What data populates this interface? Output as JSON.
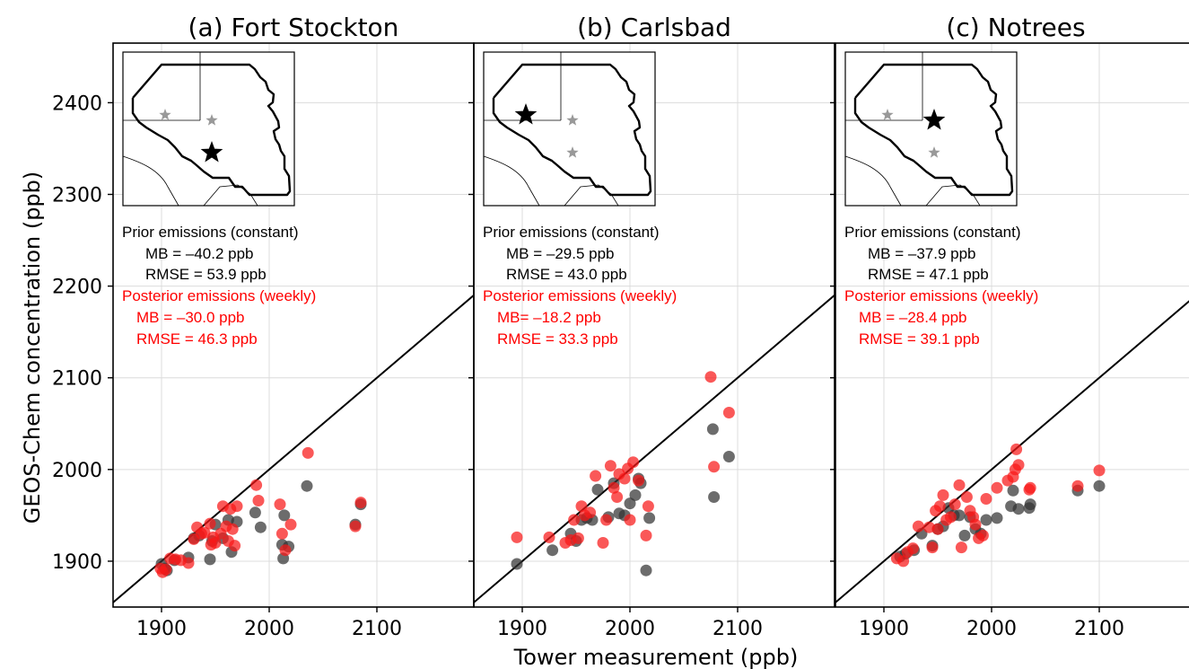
{
  "figure": {
    "xlabel": "Tower measurement (ppb)",
    "ylabel": "GEOS-Chem concentration (ppb)"
  },
  "colors": {
    "prior": "#333333",
    "posterior": "#f81818",
    "prior_text": "#000000",
    "posterior_text": "#ff0000",
    "grid": "#dcdcdc",
    "inset_star_active": "#000000",
    "inset_star_inactive": "#999999"
  },
  "chart_data": [
    {
      "type": "scatter",
      "title": "(a) Fort Stockton",
      "xlabel": "Tower measurement (ppb)",
      "ylabel": "GEOS-Chem concentration (ppb)",
      "xlim": [
        1855,
        2190
      ],
      "ylim": [
        1850,
        2465
      ],
      "xticks": [
        1900,
        2000,
        2100
      ],
      "yticks": [
        1900,
        2000,
        2100,
        2200,
        2300,
        2400
      ],
      "xtick_labels": [
        "1900",
        "2000",
        "2100"
      ],
      "ytick_labels": [
        "1900",
        "2000",
        "2100",
        "2200",
        "2300",
        "2400"
      ],
      "grid": true,
      "reference_line": "1:1",
      "inset": {
        "active_site": "Fort Stockton",
        "sites": [
          "Carlsbad",
          "Notrees",
          "Fort Stockton"
        ]
      },
      "stats": {
        "prior_heading": "Prior emissions (constant)",
        "prior_mb": "MB = –40.2 ppb",
        "prior_rmse": "RMSE = 53.9 ppb",
        "posterior_heading": "Posterior emissions (weekly)",
        "posterior_mb": "MB = –30.0 ppb",
        "posterior_rmse": "RMSE = 46.3 ppb"
      },
      "series": [
        {
          "name": "Prior emissions (constant)",
          "points": [
            [
              1900,
              1897
            ],
            [
              1903,
              1892
            ],
            [
              1905,
              1890
            ],
            [
              1912,
              1901
            ],
            [
              1925,
              1904
            ],
            [
              1930,
              1925
            ],
            [
              1935,
              1928
            ],
            [
              1945,
              1902
            ],
            [
              1947,
              1922
            ],
            [
              1950,
              1940
            ],
            [
              1957,
              1925
            ],
            [
              1962,
              1945
            ],
            [
              1965,
              1910
            ],
            [
              1970,
              1943
            ],
            [
              1987,
              1953
            ],
            [
              1992,
              1937
            ],
            [
              2012,
              1918
            ],
            [
              2013,
              1903
            ],
            [
              2014,
              1950
            ],
            [
              2018,
              1916
            ],
            [
              2035,
              1982
            ],
            [
              2080,
              1940
            ],
            [
              2085,
              1962
            ]
          ]
        },
        {
          "name": "Posterior emissions (weekly)",
          "points": [
            [
              1899,
              1892
            ],
            [
              1901,
              1888
            ],
            [
              1904,
              1891
            ],
            [
              1908,
              1903
            ],
            [
              1913,
              1902
            ],
            [
              1918,
              1901
            ],
            [
              1925,
              1898
            ],
            [
              1930,
              1924
            ],
            [
              1933,
              1937
            ],
            [
              1937,
              1930
            ],
            [
              1940,
              1931
            ],
            [
              1945,
              1941
            ],
            [
              1946,
              1918
            ],
            [
              1948,
              1926
            ],
            [
              1950,
              1920
            ],
            [
              1955,
              1930
            ],
            [
              1957,
              1960
            ],
            [
              1960,
              1938
            ],
            [
              1962,
              1922
            ],
            [
              1964,
              1957
            ],
            [
              1966,
              1935
            ],
            [
              1968,
              1917
            ],
            [
              1970,
              1960
            ],
            [
              1988,
              1983
            ],
            [
              1990,
              1966
            ],
            [
              2010,
              1962
            ],
            [
              2012,
              1930
            ],
            [
              2015,
              1912
            ],
            [
              2020,
              1940
            ],
            [
              2036,
              2018
            ],
            [
              2080,
              1938
            ],
            [
              2085,
              1964
            ]
          ]
        }
      ]
    },
    {
      "type": "scatter",
      "title": "(b) Carlsbad",
      "xlabel": "Tower measurement (ppb)",
      "ylabel": "GEOS-Chem concentration (ppb)",
      "xlim": [
        1855,
        2190
      ],
      "ylim": [
        1850,
        2465
      ],
      "xticks": [
        1900,
        2000,
        2100
      ],
      "yticks": [
        1900,
        2000,
        2100,
        2200,
        2300,
        2400
      ],
      "xtick_labels": [
        "1900",
        "2000",
        "2100"
      ],
      "ytick_labels": [],
      "grid": true,
      "reference_line": "1:1",
      "inset": {
        "active_site": "Carlsbad",
        "sites": [
          "Carlsbad",
          "Notrees",
          "Fort Stockton"
        ]
      },
      "stats": {
        "prior_heading": "Prior emissions (constant)",
        "prior_mb": "MB = –29.5 ppb",
        "prior_rmse": "RMSE = 43.0 ppb",
        "posterior_heading": "Posterior emissions (weekly)",
        "posterior_mb": "MB= –18.2 ppb",
        "posterior_rmse": "RMSE =  33.3 ppb"
      },
      "series": [
        {
          "name": "Prior emissions (constant)",
          "points": [
            [
              1895,
              1897
            ],
            [
              1928,
              1912
            ],
            [
              1945,
              1930
            ],
            [
              1950,
              1922
            ],
            [
              1955,
              1945
            ],
            [
              1960,
              1947
            ],
            [
              1965,
              1945
            ],
            [
              1970,
              1978
            ],
            [
              1980,
              1948
            ],
            [
              1985,
              1985
            ],
            [
              1990,
              1952
            ],
            [
              1995,
              1950
            ],
            [
              2000,
              1963
            ],
            [
              2005,
              1972
            ],
            [
              2008,
              1990
            ],
            [
              2010,
              1985
            ],
            [
              2015,
              1890
            ],
            [
              2018,
              1947
            ],
            [
              2077,
              2044
            ],
            [
              2078,
              1970
            ],
            [
              2092,
              2014
            ]
          ]
        },
        {
          "name": "Posterior emissions (weekly)",
          "points": [
            [
              1895,
              1926
            ],
            [
              1925,
              1926
            ],
            [
              1940,
              1920
            ],
            [
              1945,
              1923
            ],
            [
              1948,
              1945
            ],
            [
              1952,
              1925
            ],
            [
              1955,
              1960
            ],
            [
              1958,
              1950
            ],
            [
              1963,
              1953
            ],
            [
              1968,
              1993
            ],
            [
              1975,
              1920
            ],
            [
              1978,
              1945
            ],
            [
              1982,
              2004
            ],
            [
              1985,
              1980
            ],
            [
              1988,
              1970
            ],
            [
              1990,
              1995
            ],
            [
              1995,
              1990
            ],
            [
              1998,
              2001
            ],
            [
              2000,
              1945
            ],
            [
              2003,
              2008
            ],
            [
              2008,
              1988
            ],
            [
              2015,
              1928
            ],
            [
              2017,
              1960
            ],
            [
              2075,
              2101
            ],
            [
              2078,
              2003
            ],
            [
              2092,
              2062
            ]
          ]
        }
      ]
    },
    {
      "type": "scatter",
      "title": "(c) Notrees",
      "xlabel": "Tower measurement (ppb)",
      "ylabel": "GEOS-Chem concentration (ppb)",
      "xlim": [
        1855,
        2190
      ],
      "ylim": [
        1850,
        2465
      ],
      "xticks": [
        1900,
        2000,
        2100
      ],
      "yticks": [
        1900,
        2000,
        2100,
        2200,
        2300,
        2400
      ],
      "xtick_labels": [
        "1900",
        "2000",
        "2100"
      ],
      "ytick_labels": [],
      "grid": true,
      "reference_line": "1:1",
      "inset": {
        "active_site": "Notrees",
        "sites": [
          "Carlsbad",
          "Notrees",
          "Fort Stockton"
        ]
      },
      "stats": {
        "prior_heading": "Prior emissions (constant)",
        "prior_mb": "MB = –37.9 ppb",
        "prior_rmse": "RMSE = 47.1 ppb",
        "posterior_heading": "Posterior emissions (weekly)",
        "posterior_mb": "MB = –28.4 ppb",
        "posterior_rmse": "RMSE = 39.1 ppb"
      },
      "series": [
        {
          "name": "Prior emissions (constant)",
          "points": [
            [
              1915,
              1905
            ],
            [
              1920,
              1908
            ],
            [
              1928,
              1912
            ],
            [
              1935,
              1930
            ],
            [
              1945,
              1917
            ],
            [
              1950,
              1935
            ],
            [
              1955,
              1938
            ],
            [
              1960,
              1958
            ],
            [
              1965,
              1950
            ],
            [
              1970,
              1950
            ],
            [
              1975,
              1928
            ],
            [
              1980,
              1948
            ],
            [
              1985,
              1935
            ],
            [
              1990,
              1930
            ],
            [
              1995,
              1945
            ],
            [
              2005,
              1947
            ],
            [
              2018,
              1960
            ],
            [
              2020,
              1977
            ],
            [
              2025,
              1957
            ],
            [
              2035,
              1958
            ],
            [
              2036,
              1962
            ],
            [
              2080,
              1977
            ],
            [
              2100,
              1982
            ]
          ]
        },
        {
          "name": "Posterior emissions (weekly)",
          "points": [
            [
              1912,
              1903
            ],
            [
              1918,
              1900
            ],
            [
              1922,
              1910
            ],
            [
              1927,
              1914
            ],
            [
              1932,
              1938
            ],
            [
              1942,
              1937
            ],
            [
              1945,
              1915
            ],
            [
              1948,
              1955
            ],
            [
              1950,
              1935
            ],
            [
              1952,
              1960
            ],
            [
              1955,
              1972
            ],
            [
              1958,
              1945
            ],
            [
              1962,
              1948
            ],
            [
              1966,
              1962
            ],
            [
              1970,
              1983
            ],
            [
              1972,
              1915
            ],
            [
              1977,
              1970
            ],
            [
              1980,
              1955
            ],
            [
              1983,
              1948
            ],
            [
              1985,
              1940
            ],
            [
              1988,
              1925
            ],
            [
              1992,
              1928
            ],
            [
              1995,
              1968
            ],
            [
              2005,
              1980
            ],
            [
              2015,
              1988
            ],
            [
              2020,
              1992
            ],
            [
              2022,
              2000
            ],
            [
              2023,
              2022
            ],
            [
              2025,
              2005
            ],
            [
              2035,
              1978
            ],
            [
              2036,
              1980
            ],
            [
              2080,
              1982
            ],
            [
              2100,
              1999
            ]
          ]
        }
      ]
    }
  ]
}
